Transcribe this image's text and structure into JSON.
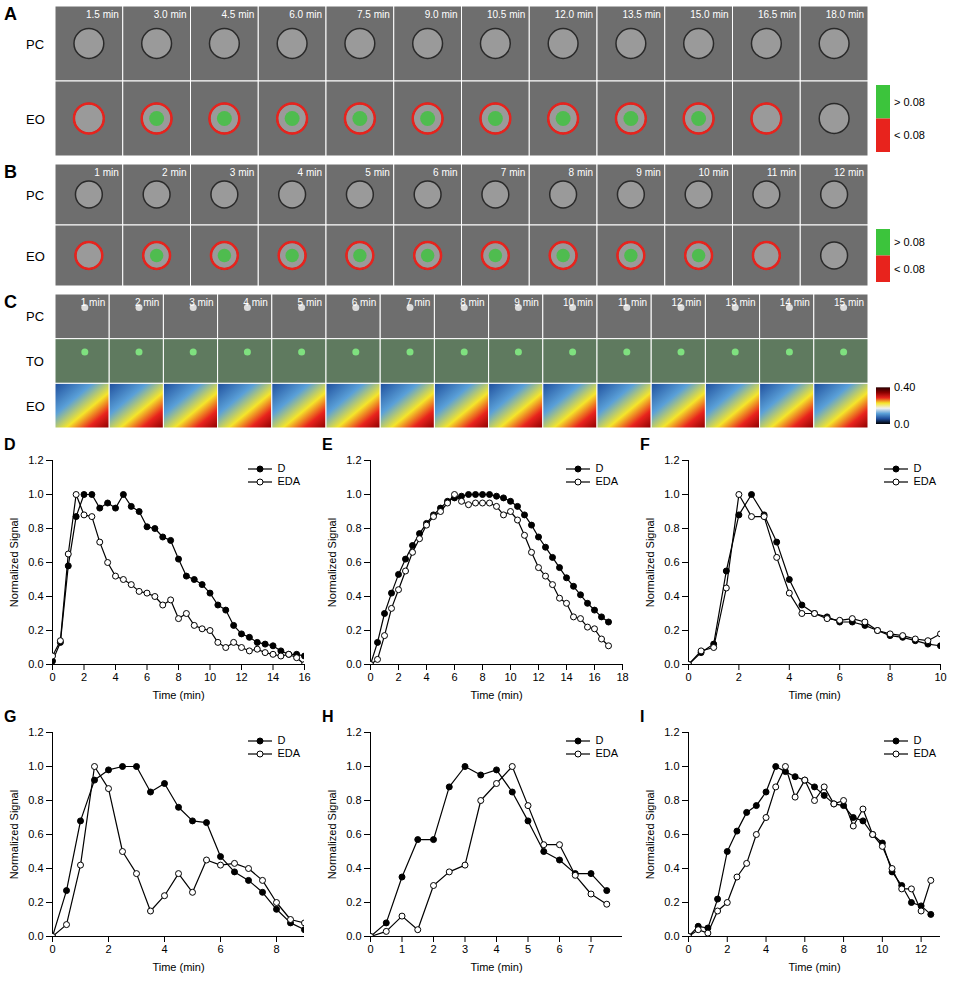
{
  "image_panels": [
    {
      "panel_label": "A",
      "rows": [
        "PC",
        "EO"
      ],
      "frames": [
        "1.5 min",
        "3.0 min",
        "4.5 min",
        "6.0 min",
        "7.5 min",
        "9.0 min",
        "10.5 min",
        "12.0 min",
        "13.5 min",
        "15.0 min",
        "16.5 min",
        "18.0 min"
      ],
      "colorbar": {
        "type": "binary",
        "entries": [
          {
            "label": "> 0.08",
            "color": "#3cc43c"
          },
          {
            "label": "< 0.08",
            "color": "#e8231d"
          }
        ]
      }
    },
    {
      "panel_label": "B",
      "rows": [
        "PC",
        "EO"
      ],
      "frames": [
        "1 min",
        "2 min",
        "3 min",
        "4 min",
        "5 min",
        "6 min",
        "7 min",
        "8 min",
        "9 min",
        "10 min",
        "11 min",
        "12 min"
      ],
      "colorbar": {
        "type": "binary",
        "entries": [
          {
            "label": "> 0.08",
            "color": "#3cc43c"
          },
          {
            "label": "< 0.08",
            "color": "#e8231d"
          }
        ]
      }
    },
    {
      "panel_label": "C",
      "rows": [
        "PC",
        "TO",
        "EO"
      ],
      "frames": [
        "1 min",
        "2 min",
        "3 min",
        "4 min",
        "5 min",
        "6 min",
        "7 min",
        "8 min",
        "9 min",
        "10 min",
        "11 min",
        "12 min",
        "13 min",
        "14 min",
        "15 min"
      ],
      "colorbar": {
        "type": "gradient",
        "range": [
          0,
          0.4
        ],
        "ticks": [
          {
            "value": 0.4,
            "label": "0.40"
          },
          {
            "value": 0,
            "label": "0.0"
          }
        ],
        "colors": [
          "#000000",
          "#1f4e9c",
          "#5aa0d8",
          "#f0f0f0",
          "#f5e52a",
          "#e8231d",
          "#8b0000",
          "#2a0000"
        ]
      }
    }
  ],
  "chart_data": [
    {
      "type": "line",
      "panel_label": "D",
      "x_label": "Time (min)",
      "y_label": "Normalized Signal",
      "xlim": [
        0,
        16
      ],
      "xticks": [
        0,
        2,
        4,
        6,
        8,
        10,
        12,
        14,
        16
      ],
      "ylim": [
        0,
        1.2
      ],
      "yticks": [
        {
          "value": 0,
          "label": "0.0"
        },
        {
          "value": 0.2,
          "label": "0.2"
        },
        {
          "value": 0.4,
          "label": "0.4"
        },
        {
          "value": 0.6,
          "label": "0.6"
        },
        {
          "value": 0.8,
          "label": "0.8"
        },
        {
          "value": 1.0,
          "label": "1.0"
        },
        {
          "value": 1.2,
          "label": "1.2"
        }
      ],
      "grid": false,
      "legend": "top-right",
      "x": [
        0,
        0.5,
        1,
        1.5,
        2,
        2.5,
        3,
        3.5,
        4,
        4.5,
        5,
        5.5,
        6,
        6.5,
        7,
        7.5,
        8,
        8.5,
        9,
        9.5,
        10,
        10.5,
        11,
        11.5,
        12,
        12.5,
        13,
        13.5,
        14,
        14.5,
        15,
        15.5,
        16
      ],
      "series": [
        {
          "name": "D",
          "color": "#000000",
          "marker": "circle",
          "values": [
            0.02,
            0.13,
            0.58,
            0.87,
            1.0,
            1.0,
            0.92,
            0.95,
            0.92,
            1.0,
            0.93,
            0.9,
            0.81,
            0.8,
            0.75,
            0.73,
            0.62,
            0.52,
            0.5,
            0.47,
            0.42,
            0.35,
            0.32,
            0.23,
            0.18,
            0.16,
            0.13,
            0.12,
            0.11,
            0.08,
            0.06,
            0.06,
            0.05
          ]
        },
        {
          "name": "EDA",
          "color": "#000000",
          "marker": "open_circle",
          "values": [
            0.05,
            0.14,
            0.65,
            1.0,
            0.88,
            0.87,
            0.72,
            0.6,
            0.52,
            0.5,
            0.47,
            0.43,
            0.42,
            0.4,
            0.35,
            0.38,
            0.27,
            0.3,
            0.23,
            0.21,
            0.2,
            0.13,
            0.1,
            0.13,
            0.1,
            0.08,
            0.09,
            0.07,
            0.06,
            0.05,
            0.06,
            0.04,
            0.0
          ]
        }
      ]
    },
    {
      "type": "line",
      "panel_label": "E",
      "x_label": "Time (min)",
      "y_label": "Normalized Signal",
      "xlim": [
        0,
        18
      ],
      "xticks": [
        0,
        2,
        4,
        6,
        8,
        10,
        12,
        14,
        16,
        18
      ],
      "ylim": [
        0,
        1.2
      ],
      "yticks": [
        {
          "value": 0,
          "label": "0.0"
        },
        {
          "value": 0.2,
          "label": "0.2"
        },
        {
          "value": 0.4,
          "label": "0.4"
        },
        {
          "value": 0.6,
          "label": "0.6"
        },
        {
          "value": 0.8,
          "label": "0.8"
        },
        {
          "value": 1.0,
          "label": "1.0"
        },
        {
          "value": 1.2,
          "label": "1.2"
        }
      ],
      "grid": false,
      "legend": "top-right",
      "x": [
        0,
        0.5,
        1,
        1.5,
        2,
        2.5,
        3,
        3.5,
        4,
        4.5,
        5,
        5.5,
        6,
        6.5,
        7,
        7.5,
        8,
        8.5,
        9,
        9.5,
        10,
        10.5,
        11,
        11.5,
        12,
        12.5,
        13,
        13.5,
        14,
        14.5,
        15,
        15.5,
        16,
        16.5,
        17
      ],
      "series": [
        {
          "name": "D",
          "color": "#000000",
          "marker": "circle",
          "values": [
            0,
            0.13,
            0.3,
            0.42,
            0.53,
            0.62,
            0.7,
            0.77,
            0.83,
            0.88,
            0.92,
            0.96,
            0.98,
            0.99,
            1.0,
            1.0,
            1.0,
            1.0,
            0.99,
            0.98,
            0.96,
            0.93,
            0.88,
            0.82,
            0.75,
            0.69,
            0.63,
            0.57,
            0.51,
            0.46,
            0.41,
            0.36,
            0.32,
            0.28,
            0.25
          ]
        },
        {
          "name": "EDA",
          "color": "#000000",
          "marker": "open_circle",
          "values": [
            0,
            0.03,
            0.17,
            0.33,
            0.44,
            0.55,
            0.66,
            0.74,
            0.82,
            0.87,
            0.9,
            0.95,
            1.0,
            0.96,
            0.94,
            0.95,
            0.95,
            0.95,
            0.93,
            0.88,
            0.9,
            0.85,
            0.76,
            0.66,
            0.57,
            0.52,
            0.47,
            0.39,
            0.36,
            0.28,
            0.27,
            0.22,
            0.21,
            0.15,
            0.11
          ]
        }
      ]
    },
    {
      "type": "line",
      "panel_label": "F",
      "x_label": "Time (min)",
      "y_label": "Normalized Signal",
      "xlim": [
        0,
        10
      ],
      "xticks": [
        0,
        2,
        4,
        6,
        8,
        10
      ],
      "ylim": [
        0,
        1.2
      ],
      "yticks": [
        {
          "value": 0,
          "label": "0.0"
        },
        {
          "value": 0.2,
          "label": "0.2"
        },
        {
          "value": 0.4,
          "label": "0.4"
        },
        {
          "value": 0.6,
          "label": "0.6"
        },
        {
          "value": 0.8,
          "label": "0.8"
        },
        {
          "value": 1.0,
          "label": "1.0"
        },
        {
          "value": 1.2,
          "label": "1.2"
        }
      ],
      "grid": false,
      "legend": "top-right",
      "x": [
        0,
        0.5,
        1,
        1.5,
        2,
        2.5,
        3,
        3.5,
        4,
        4.5,
        5,
        5.5,
        6,
        6.5,
        7,
        7.5,
        8,
        8.5,
        9,
        9.5,
        10
      ],
      "series": [
        {
          "name": "D",
          "color": "#000000",
          "marker": "circle",
          "values": [
            0,
            0.07,
            0.12,
            0.55,
            0.88,
            1.0,
            0.88,
            0.72,
            0.5,
            0.35,
            0.3,
            0.28,
            0.25,
            0.25,
            0.23,
            0.2,
            0.17,
            0.16,
            0.14,
            0.12,
            0.11
          ]
        },
        {
          "name": "EDA",
          "color": "#000000",
          "marker": "open_circle",
          "values": [
            0,
            0.08,
            0.1,
            0.45,
            1.0,
            0.87,
            0.87,
            0.63,
            0.42,
            0.3,
            0.3,
            0.27,
            0.26,
            0.27,
            0.25,
            0.2,
            0.18,
            0.17,
            0.15,
            0.14,
            0.18
          ]
        }
      ]
    },
    {
      "type": "line",
      "panel_label": "G",
      "x_label": "Time (min)",
      "y_label": "Normalized Signal",
      "xlim": [
        0,
        9
      ],
      "xticks": [
        0,
        2,
        4,
        6,
        8
      ],
      "ylim": [
        0,
        1.2
      ],
      "yticks": [
        {
          "value": 0,
          "label": "0.0"
        },
        {
          "value": 0.2,
          "label": "0.2"
        },
        {
          "value": 0.4,
          "label": "0.4"
        },
        {
          "value": 0.6,
          "label": "0.6"
        },
        {
          "value": 0.8,
          "label": "0.8"
        },
        {
          "value": 1.0,
          "label": "1.0"
        },
        {
          "value": 1.2,
          "label": "1.2"
        }
      ],
      "grid": false,
      "legend": "top-right",
      "x": [
        0,
        0.5,
        1,
        1.5,
        2,
        2.5,
        3,
        3.5,
        4,
        4.5,
        5,
        5.5,
        6,
        6.5,
        7,
        7.5,
        8,
        8.5,
        9
      ],
      "series": [
        {
          "name": "D",
          "color": "#000000",
          "marker": "circle",
          "values": [
            0,
            0.27,
            0.68,
            0.92,
            0.98,
            1.0,
            1.0,
            0.85,
            0.9,
            0.76,
            0.68,
            0.67,
            0.47,
            0.38,
            0.33,
            0.26,
            0.16,
            0.08,
            0.04
          ]
        },
        {
          "name": "EDA",
          "color": "#000000",
          "marker": "open_circle",
          "values": [
            0,
            0.07,
            0.42,
            1.0,
            0.87,
            0.5,
            0.37,
            0.15,
            0.24,
            0.37,
            0.26,
            0.45,
            0.42,
            0.43,
            0.4,
            0.33,
            0.2,
            0.1,
            0.08
          ]
        }
      ]
    },
    {
      "type": "line",
      "panel_label": "H",
      "x_label": "Time (min)",
      "y_label": "Normalized Signal",
      "xlim": [
        0,
        8
      ],
      "xticks": [
        0,
        1,
        2,
        3,
        4,
        5,
        6,
        7
      ],
      "ylim": [
        0,
        1.2
      ],
      "yticks": [
        {
          "value": 0,
          "label": "0.0"
        },
        {
          "value": 0.2,
          "label": "0.2"
        },
        {
          "value": 0.4,
          "label": "0.4"
        },
        {
          "value": 0.6,
          "label": "0.6"
        },
        {
          "value": 0.8,
          "label": "0.8"
        },
        {
          "value": 1.0,
          "label": "1.0"
        },
        {
          "value": 1.2,
          "label": "1.2"
        }
      ],
      "grid": false,
      "legend": "top-right",
      "x": [
        0,
        0.5,
        1,
        1.5,
        2,
        2.5,
        3,
        3.5,
        4,
        4.5,
        5,
        5.5,
        6,
        6.5,
        7,
        7.5
      ],
      "series": [
        {
          "name": "D",
          "color": "#000000",
          "marker": "circle",
          "values": [
            0,
            0.08,
            0.35,
            0.57,
            0.57,
            0.88,
            1.0,
            0.95,
            0.98,
            0.85,
            0.68,
            0.5,
            0.45,
            0.37,
            0.37,
            0.27
          ]
        },
        {
          "name": "EDA",
          "color": "#000000",
          "marker": "open_circle",
          "values": [
            0,
            0.03,
            0.12,
            0.04,
            0.3,
            0.38,
            0.42,
            0.8,
            0.9,
            1.0,
            0.77,
            0.54,
            0.54,
            0.36,
            0.25,
            0.19
          ]
        }
      ]
    },
    {
      "type": "line",
      "panel_label": "I",
      "x_label": "Time (min)",
      "y_label": "Normalized Signal",
      "xlim": [
        0,
        13
      ],
      "xticks": [
        0,
        2,
        4,
        6,
        8,
        10,
        12
      ],
      "ylim": [
        0,
        1.2
      ],
      "yticks": [
        {
          "value": 0,
          "label": "0.0"
        },
        {
          "value": 0.2,
          "label": "0.2"
        },
        {
          "value": 0.4,
          "label": "0.4"
        },
        {
          "value": 0.6,
          "label": "0.6"
        },
        {
          "value": 0.8,
          "label": "0.8"
        },
        {
          "value": 1.0,
          "label": "1.0"
        },
        {
          "value": 1.2,
          "label": "1.2"
        }
      ],
      "grid": false,
      "legend": "top-right",
      "x": [
        0,
        0.5,
        1,
        1.5,
        2,
        2.5,
        3,
        3.5,
        4,
        4.5,
        5,
        5.5,
        6,
        6.5,
        7,
        7.5,
        8,
        8.5,
        9,
        9.5,
        10,
        10.5,
        11,
        11.5,
        12,
        12.5
      ],
      "series": [
        {
          "name": "D",
          "color": "#000000",
          "marker": "circle",
          "values": [
            0,
            0.06,
            0.05,
            0.22,
            0.5,
            0.62,
            0.73,
            0.77,
            0.85,
            1.0,
            0.97,
            0.94,
            0.92,
            0.88,
            0.83,
            0.78,
            0.77,
            0.7,
            0.68,
            0.6,
            0.55,
            0.38,
            0.3,
            0.2,
            0.18,
            0.13
          ]
        },
        {
          "name": "EDA",
          "color": "#000000",
          "marker": "open_circle",
          "values": [
            0,
            0.04,
            0.02,
            0.15,
            0.2,
            0.35,
            0.43,
            0.6,
            0.7,
            0.88,
            1.0,
            0.82,
            0.92,
            0.8,
            0.88,
            0.78,
            0.8,
            0.65,
            0.75,
            0.6,
            0.53,
            0.4,
            0.28,
            0.28,
            0.15,
            0.33
          ]
        }
      ]
    }
  ]
}
